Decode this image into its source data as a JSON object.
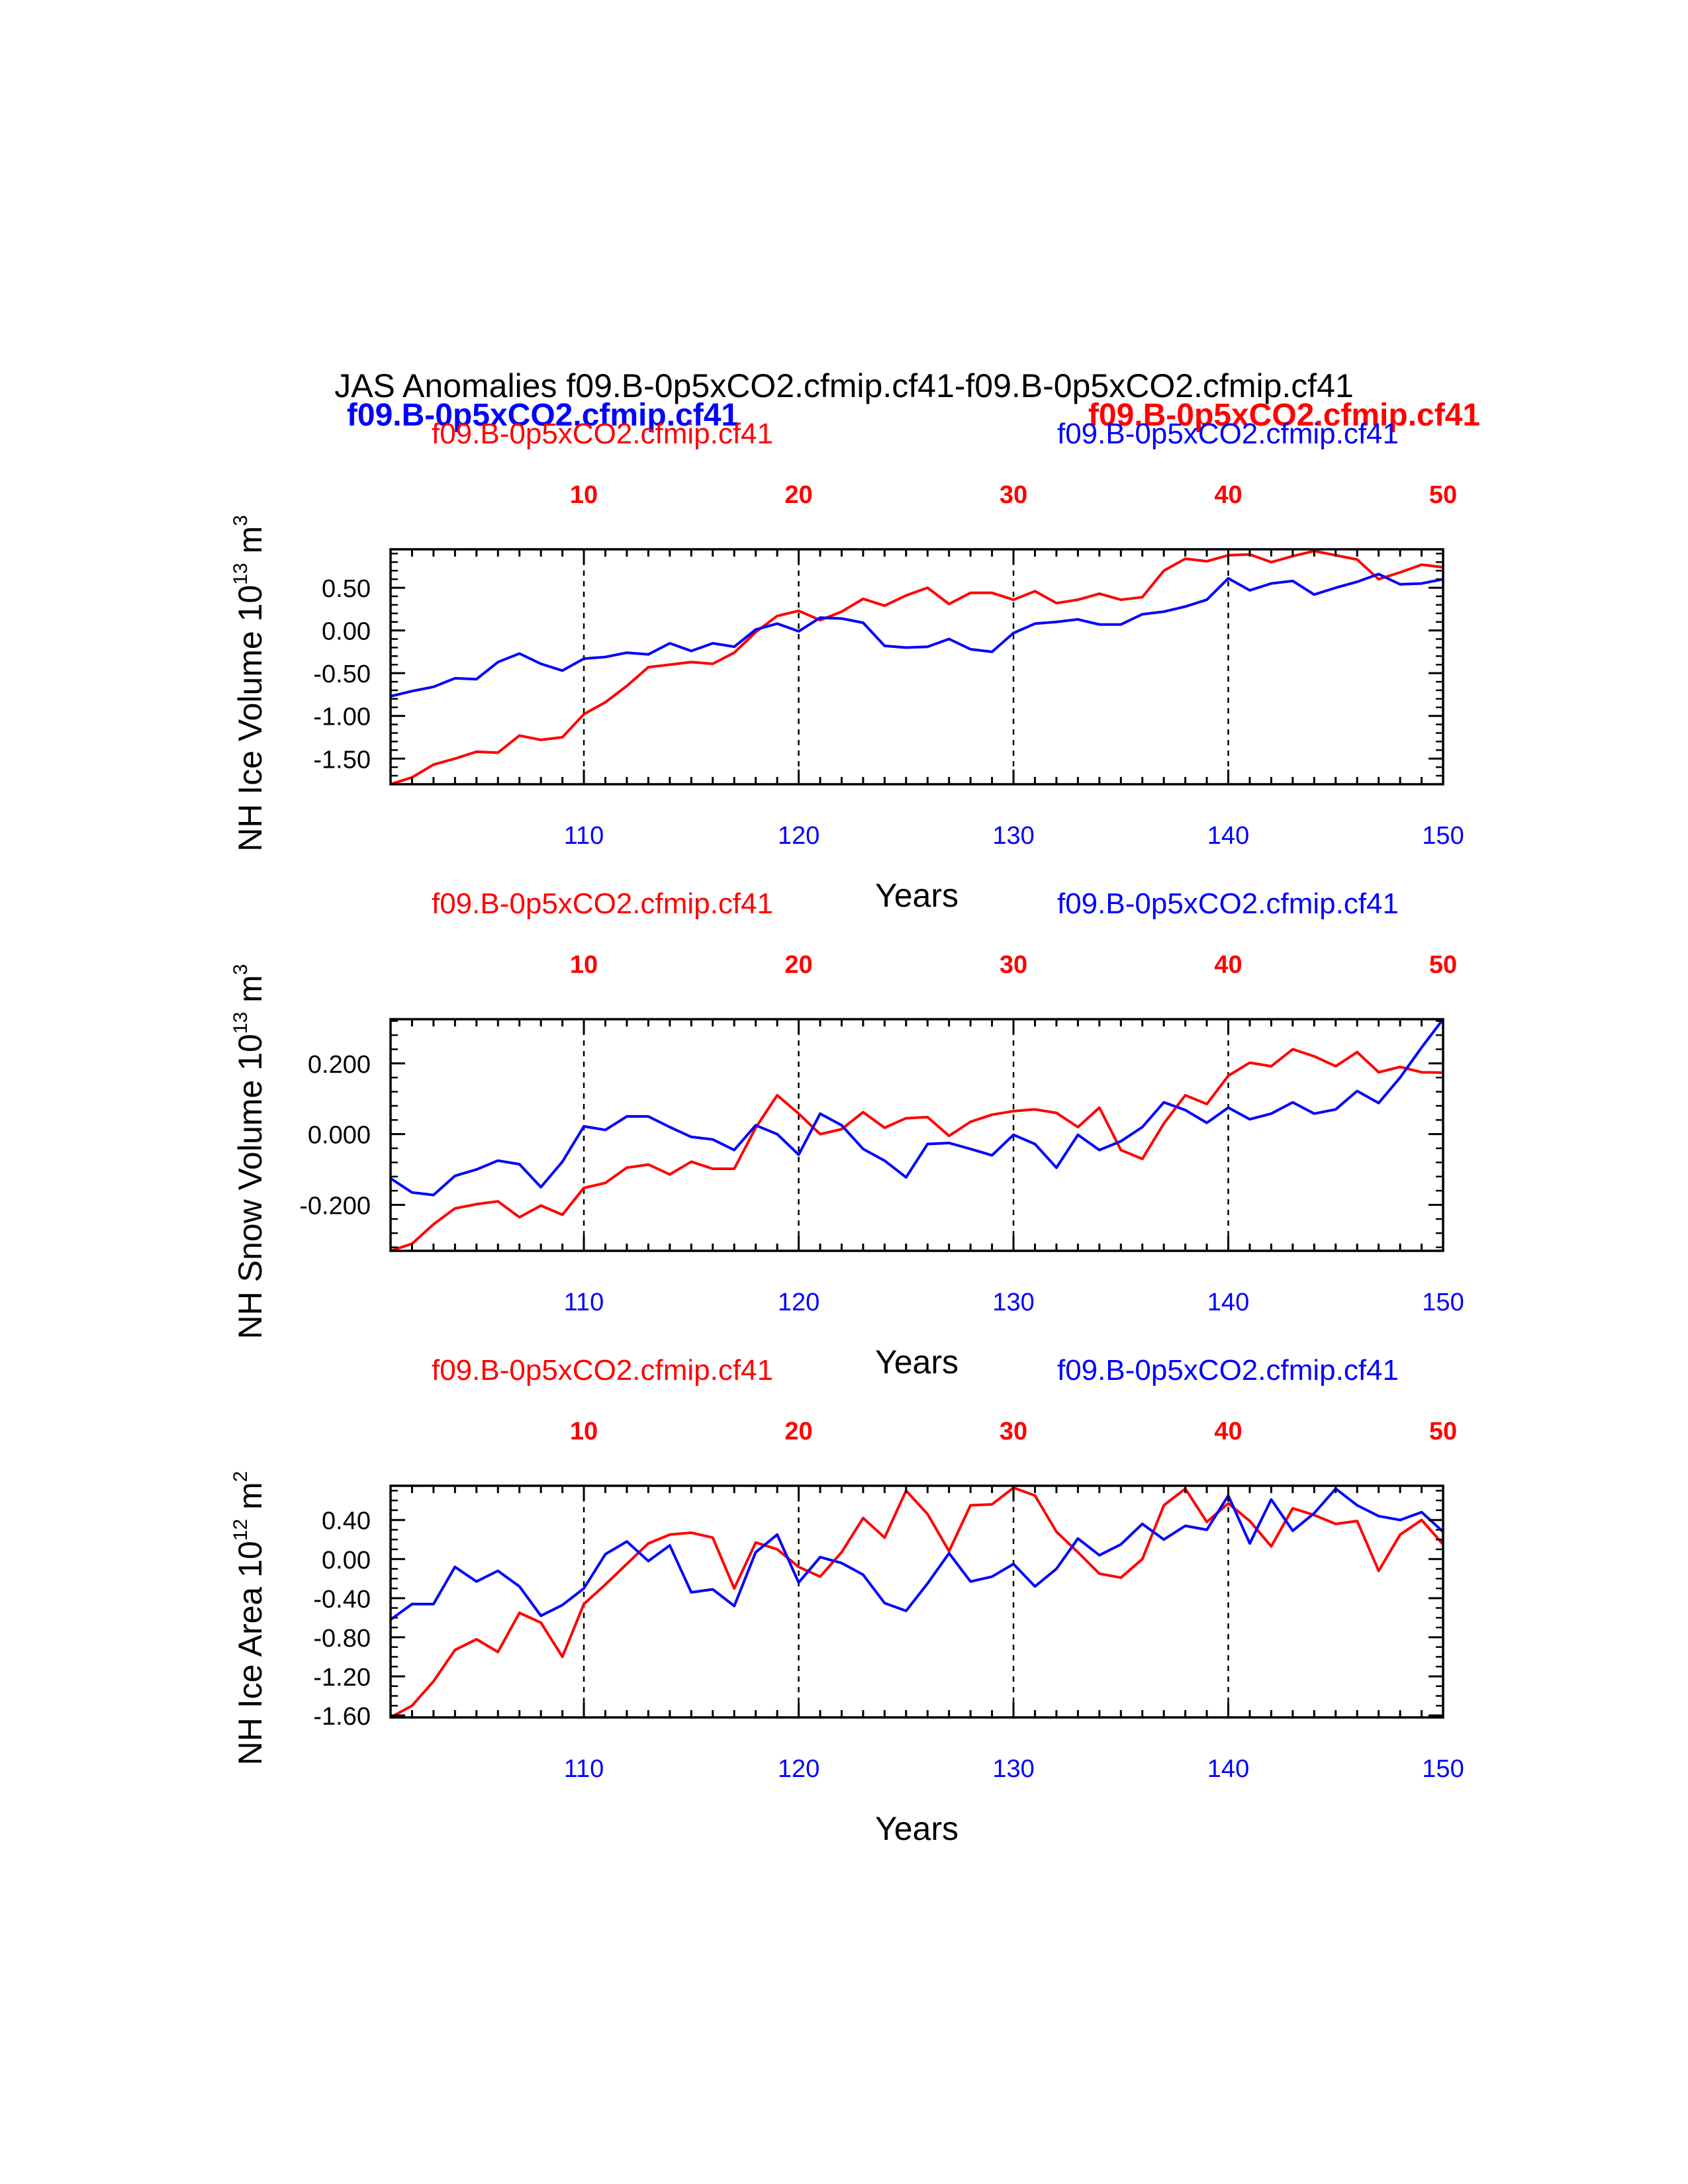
{
  "figure": {
    "title": "JAS Anomalies f09.B-0p5xCO2.cfmip.cf41-f09.B-0p5xCO2.cfmip.cf41",
    "legend_left": "f09.B-0p5xCO2.cfmip.cf41",
    "legend_right": "f09.B-0p5xCO2.cfmip.cf41",
    "colors": {
      "series_a": "#ff0000",
      "series_b": "#0000ff",
      "axis": "#000000"
    }
  },
  "chart_data": [
    {
      "type": "line",
      "top_left_label": "f09.B-0p5xCO2.cfmip.cf41",
      "top_right_label": "f09.B-0p5xCO2.cfmip.cf41",
      "ylabel": "NH Ice Volume 10",
      "ylabel_exp": "13",
      "ylabel_unit": " m",
      "ylabel_unit_exp": "3",
      "xlabel": "Years",
      "xlim": [
        101,
        150
      ],
      "ylim": [
        -1.8,
        0.95
      ],
      "bottom_ticks": [
        {
          "v": 110,
          "label": "110"
        },
        {
          "v": 120,
          "label": "120"
        },
        {
          "v": 130,
          "label": "130"
        },
        {
          "v": 140,
          "label": "140"
        },
        {
          "v": 150,
          "label": "150"
        }
      ],
      "top_ticks": [
        {
          "v": 110,
          "label": "10"
        },
        {
          "v": 120,
          "label": "20"
        },
        {
          "v": 130,
          "label": "30"
        },
        {
          "v": 140,
          "label": "40"
        },
        {
          "v": 150,
          "label": "50"
        }
      ],
      "y_ticks": [
        {
          "v": 0.5,
          "label": "0.50"
        },
        {
          "v": 0.0,
          "label": "0.00"
        },
        {
          "v": -0.5,
          "label": "-0.50"
        },
        {
          "v": -1.0,
          "label": "-1.00"
        },
        {
          "v": -1.5,
          "label": "-1.50"
        }
      ],
      "y_minor_step": 0.1,
      "grid_x": [
        110,
        120,
        130,
        140
      ],
      "x": [
        101,
        102,
        103,
        104,
        105,
        106,
        107,
        108,
        109,
        110,
        111,
        112,
        113,
        114,
        115,
        116,
        117,
        118,
        119,
        120,
        121,
        122,
        123,
        124,
        125,
        126,
        127,
        128,
        129,
        130,
        131,
        132,
        133,
        134,
        135,
        136,
        137,
        138,
        139,
        140,
        141,
        142,
        143,
        144,
        145,
        146,
        147,
        148,
        149,
        150
      ],
      "series": [
        {
          "color_key": "series_a",
          "values": [
            -1.8,
            -1.72,
            -1.57,
            -1.5,
            -1.42,
            -1.43,
            -1.23,
            -1.28,
            -1.25,
            -0.98,
            -0.84,
            -0.65,
            -0.43,
            -0.4,
            -0.37,
            -0.39,
            -0.26,
            -0.02,
            0.17,
            0.23,
            0.12,
            0.22,
            0.37,
            0.29,
            0.41,
            0.5,
            0.31,
            0.44,
            0.44,
            0.36,
            0.46,
            0.32,
            0.36,
            0.43,
            0.36,
            0.39,
            0.7,
            0.84,
            0.81,
            0.88,
            0.89,
            0.8,
            0.87,
            0.93,
            0.88,
            0.83,
            0.6,
            0.68,
            0.77,
            0.74
          ]
        },
        {
          "color_key": "series_b",
          "values": [
            -0.77,
            -0.71,
            -0.66,
            -0.56,
            -0.57,
            -0.37,
            -0.27,
            -0.39,
            -0.47,
            -0.33,
            -0.31,
            -0.26,
            -0.28,
            -0.15,
            -0.24,
            -0.15,
            -0.19,
            0.01,
            0.08,
            -0.01,
            0.15,
            0.14,
            0.09,
            -0.18,
            -0.2,
            -0.19,
            -0.1,
            -0.22,
            -0.25,
            -0.03,
            0.08,
            0.1,
            0.13,
            0.07,
            0.07,
            0.19,
            0.22,
            0.28,
            0.36,
            0.61,
            0.47,
            0.55,
            0.58,
            0.42,
            0.5,
            0.57,
            0.66,
            0.54,
            0.55,
            0.6
          ]
        }
      ]
    },
    {
      "type": "line",
      "top_left_label": "f09.B-0p5xCO2.cfmip.cf41",
      "top_right_label": "f09.B-0p5xCO2.cfmip.cf41",
      "ylabel": "NH Snow Volume 10",
      "ylabel_exp": "13",
      "ylabel_unit": " m",
      "ylabel_unit_exp": "3",
      "xlabel": "Years",
      "xlim": [
        101,
        150
      ],
      "ylim": [
        -0.33,
        0.325
      ],
      "bottom_ticks": [
        {
          "v": 110,
          "label": "110"
        },
        {
          "v": 120,
          "label": "120"
        },
        {
          "v": 130,
          "label": "130"
        },
        {
          "v": 140,
          "label": "140"
        },
        {
          "v": 150,
          "label": "150"
        }
      ],
      "top_ticks": [
        {
          "v": 110,
          "label": "10"
        },
        {
          "v": 120,
          "label": "20"
        },
        {
          "v": 130,
          "label": "30"
        },
        {
          "v": 140,
          "label": "40"
        },
        {
          "v": 150,
          "label": "50"
        }
      ],
      "y_ticks": [
        {
          "v": 0.2,
          "label": "0.200"
        },
        {
          "v": 0.0,
          "label": "0.000"
        },
        {
          "v": -0.2,
          "label": "-0.200"
        }
      ],
      "y_minor_step": 0.04,
      "grid_x": [
        110,
        120,
        130,
        140
      ],
      "x": [
        101,
        102,
        103,
        104,
        105,
        106,
        107,
        108,
        109,
        110,
        111,
        112,
        113,
        114,
        115,
        116,
        117,
        118,
        119,
        120,
        121,
        122,
        123,
        124,
        125,
        126,
        127,
        128,
        129,
        130,
        131,
        132,
        133,
        134,
        135,
        136,
        137,
        138,
        139,
        140,
        141,
        142,
        143,
        144,
        145,
        146,
        147,
        148,
        149,
        150
      ],
      "series": [
        {
          "color_key": "series_a",
          "values": [
            -0.33,
            -0.31,
            -0.255,
            -0.21,
            -0.198,
            -0.19,
            -0.235,
            -0.202,
            -0.228,
            -0.152,
            -0.138,
            -0.095,
            -0.086,
            -0.114,
            -0.078,
            -0.098,
            -0.098,
            0.018,
            0.11,
            0.058,
            0.0,
            0.014,
            0.062,
            0.018,
            0.045,
            0.048,
            -0.005,
            0.035,
            0.055,
            0.065,
            0.07,
            0.06,
            0.02,
            0.075,
            -0.045,
            -0.07,
            0.03,
            0.11,
            0.085,
            0.165,
            0.202,
            0.192,
            0.24,
            0.22,
            0.192,
            0.232,
            0.175,
            0.19,
            0.175,
            0.174
          ]
        },
        {
          "color_key": "series_b",
          "values": [
            -0.125,
            -0.165,
            -0.172,
            -0.118,
            -0.1,
            -0.075,
            -0.085,
            -0.15,
            -0.078,
            0.022,
            0.012,
            0.05,
            0.05,
            0.02,
            -0.008,
            -0.015,
            -0.045,
            0.025,
            0.0,
            -0.058,
            0.058,
            0.025,
            -0.042,
            -0.075,
            -0.122,
            -0.028,
            -0.025,
            -0.042,
            -0.06,
            -0.002,
            -0.028,
            -0.095,
            -0.002,
            -0.045,
            -0.02,
            0.02,
            0.09,
            0.068,
            0.032,
            0.075,
            0.042,
            0.058,
            0.09,
            0.058,
            0.07,
            0.122,
            0.088,
            0.16,
            0.245,
            0.325
          ]
        }
      ]
    },
    {
      "type": "line",
      "top_left_label": "f09.B-0p5xCO2.cfmip.cf41",
      "top_right_label": "f09.B-0p5xCO2.cfmip.cf41",
      "ylabel": "NH Ice Area 10",
      "ylabel_exp": "12",
      "ylabel_unit": " m",
      "ylabel_unit_exp": "2",
      "xlabel": "Years",
      "xlim": [
        101,
        150
      ],
      "ylim": [
        -1.62,
        0.75
      ],
      "bottom_ticks": [
        {
          "v": 110,
          "label": "110"
        },
        {
          "v": 120,
          "label": "120"
        },
        {
          "v": 130,
          "label": "130"
        },
        {
          "v": 140,
          "label": "140"
        },
        {
          "v": 150,
          "label": "150"
        }
      ],
      "top_ticks": [
        {
          "v": 110,
          "label": "10"
        },
        {
          "v": 120,
          "label": "20"
        },
        {
          "v": 130,
          "label": "30"
        },
        {
          "v": 140,
          "label": "40"
        },
        {
          "v": 150,
          "label": "50"
        }
      ],
      "y_ticks": [
        {
          "v": 0.4,
          "label": "0.40"
        },
        {
          "v": 0.0,
          "label": "0.00"
        },
        {
          "v": -0.4,
          "label": "-0.40"
        },
        {
          "v": -0.8,
          "label": "-0.80"
        },
        {
          "v": -1.2,
          "label": "-1.20"
        },
        {
          "v": -1.6,
          "label": "-1.60"
        }
      ],
      "y_minor_step": 0.1,
      "grid_x": [
        110,
        120,
        130,
        140
      ],
      "x": [
        101,
        102,
        103,
        104,
        105,
        106,
        107,
        108,
        109,
        110,
        111,
        112,
        113,
        114,
        115,
        116,
        117,
        118,
        119,
        120,
        121,
        122,
        123,
        124,
        125,
        126,
        127,
        128,
        129,
        130,
        131,
        132,
        133,
        134,
        135,
        136,
        137,
        138,
        139,
        140,
        141,
        142,
        143,
        144,
        145,
        146,
        147,
        148,
        149,
        150
      ],
      "series": [
        {
          "color_key": "series_a",
          "values": [
            -1.62,
            -1.5,
            -1.25,
            -0.93,
            -0.82,
            -0.95,
            -0.55,
            -0.65,
            -1.0,
            -0.46,
            -0.26,
            -0.05,
            0.16,
            0.25,
            0.27,
            0.22,
            -0.3,
            0.17,
            0.1,
            -0.08,
            -0.18,
            0.07,
            0.42,
            0.22,
            0.7,
            0.46,
            0.08,
            0.55,
            0.56,
            0.73,
            0.65,
            0.28,
            0.07,
            -0.15,
            -0.19,
            0.0,
            0.55,
            0.72,
            0.38,
            0.57,
            0.39,
            0.13,
            0.52,
            0.45,
            0.36,
            0.39,
            -0.12,
            0.25,
            0.4,
            0.15
          ]
        },
        {
          "color_key": "series_b",
          "values": [
            -0.62,
            -0.46,
            -0.46,
            -0.08,
            -0.23,
            -0.12,
            -0.28,
            -0.58,
            -0.47,
            -0.3,
            0.05,
            0.18,
            -0.02,
            0.14,
            -0.34,
            -0.31,
            -0.48,
            0.07,
            0.25,
            -0.24,
            0.02,
            -0.04,
            -0.16,
            -0.45,
            -0.53,
            -0.25,
            0.06,
            -0.23,
            -0.18,
            -0.05,
            -0.28,
            -0.1,
            0.21,
            0.04,
            0.15,
            0.36,
            0.2,
            0.34,
            0.3,
            0.65,
            0.16,
            0.61,
            0.29,
            0.47,
            0.72,
            0.55,
            0.44,
            0.4,
            0.48,
            0.28
          ]
        }
      ]
    }
  ]
}
